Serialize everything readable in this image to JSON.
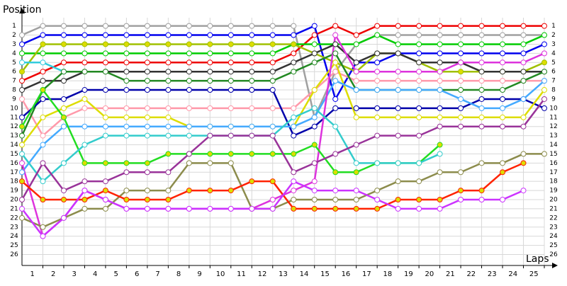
{
  "chart_data": {
    "type": "line",
    "ylabel": "Position",
    "xlabel": "Laps",
    "x": [
      0,
      1,
      2,
      3,
      4,
      5,
      6,
      7,
      8,
      9,
      10,
      11,
      12,
      13,
      14,
      15,
      16,
      17,
      18,
      19,
      20,
      21,
      22,
      23,
      24,
      25
    ],
    "xlim": [
      0,
      25
    ],
    "ylim": [
      27.2,
      0.1
    ],
    "xticks": [
      1,
      2,
      3,
      4,
      5,
      6,
      7,
      8,
      9,
      10,
      11,
      12,
      13,
      14,
      15,
      16,
      17,
      18,
      19,
      20,
      21,
      22,
      23,
      24,
      25
    ],
    "yticks": [
      1,
      2,
      3,
      4,
      5,
      6,
      7,
      8,
      9,
      10,
      11,
      12,
      13,
      14,
      15,
      16,
      17,
      18,
      19,
      20,
      21,
      22,
      23,
      24,
      25,
      26
    ],
    "grid": true,
    "series": [
      {
        "color": "#a0a0a0",
        "values": [
          2,
          1,
          1,
          1,
          1,
          1,
          1,
          1,
          1,
          1,
          1,
          1,
          1,
          1,
          11,
          6,
          3,
          2,
          2,
          2,
          2,
          2,
          2,
          2,
          2,
          2
        ]
      },
      {
        "color": "#ee0000",
        "values": [
          7,
          6,
          5,
          5,
          5,
          5,
          5,
          5,
          5,
          5,
          5,
          5,
          5,
          4,
          2,
          1,
          2,
          1,
          1,
          1,
          1,
          1,
          1,
          1,
          1,
          1
        ]
      },
      {
        "color": "#0000ee",
        "values": [
          3,
          2,
          2,
          2,
          2,
          2,
          2,
          2,
          2,
          2,
          2,
          2,
          2,
          2,
          1,
          9,
          5,
          5,
          4,
          4,
          4,
          4,
          4,
          4,
          4,
          3
        ]
      },
      {
        "color": "#00cc00",
        "values": [
          4,
          4,
          4,
          4,
          4,
          4,
          4,
          4,
          4,
          4,
          4,
          4,
          4,
          3,
          3,
          3,
          3,
          2,
          3,
          3,
          3,
          3,
          3,
          3,
          3,
          2
        ]
      },
      {
        "color": "#a0c000",
        "marker_color": "#dddd00",
        "values": [
          6,
          3,
          3,
          3,
          3,
          3,
          3,
          3,
          3,
          3,
          3,
          3,
          3,
          3,
          4,
          5,
          6,
          4,
          4,
          5,
          6,
          6,
          6,
          6,
          6,
          5
        ]
      },
      {
        "color": "#33ccdd",
        "values": [
          5,
          5,
          6,
          null,
          null,
          null,
          null,
          null,
          null,
          null,
          null,
          null,
          null,
          null,
          null,
          null,
          null,
          null,
          null,
          null,
          null,
          null,
          null,
          null,
          null,
          null
        ]
      },
      {
        "color": "#333333",
        "values": [
          8,
          7,
          7,
          6,
          6,
          6,
          6,
          6,
          6,
          6,
          6,
          6,
          6,
          5,
          4,
          3,
          5,
          4,
          4,
          5,
          5,
          5,
          6,
          6,
          6,
          6
        ]
      },
      {
        "color": "#ff99aa",
        "values": [
          9,
          13,
          11,
          10,
          10,
          10,
          10,
          10,
          10,
          10,
          10,
          10,
          10,
          10,
          8,
          6,
          7,
          7,
          7,
          7,
          7,
          7,
          7,
          7,
          7,
          7
        ]
      },
      {
        "color": "#228822",
        "values": [
          13,
          8,
          6,
          6,
          6,
          7,
          7,
          7,
          7,
          7,
          7,
          7,
          7,
          6,
          5,
          4,
          8,
          8,
          8,
          8,
          8,
          8,
          8,
          8,
          7,
          6
        ]
      },
      {
        "color": "#0000aa",
        "values": [
          11,
          9,
          9,
          8,
          8,
          8,
          8,
          8,
          8,
          8,
          8,
          8,
          8,
          13,
          12,
          10,
          10,
          10,
          10,
          10,
          10,
          10,
          9,
          9,
          9,
          10
        ]
      },
      {
        "color": "#dddd00",
        "values": [
          14,
          11,
          10,
          9,
          11,
          11,
          11,
          11,
          12,
          12,
          12,
          12,
          12,
          12,
          8,
          5,
          11,
          11,
          11,
          11,
          11,
          11,
          11,
          11,
          11,
          8
        ]
      },
      {
        "color": "#44aaff",
        "values": [
          17,
          14,
          12,
          12,
          12,
          12,
          12,
          12,
          12,
          12,
          12,
          12,
          12,
          12,
          11,
          7,
          8,
          8,
          8,
          8,
          8,
          9,
          10,
          10,
          9,
          7
        ]
      },
      {
        "color": "#dd33dd",
        "values": [
          16,
          24,
          22,
          19,
          20,
          21,
          21,
          21,
          21,
          21,
          21,
          21,
          20,
          19,
          18,
          2,
          6,
          6,
          6,
          6,
          6,
          5,
          5,
          5,
          5,
          4
        ]
      },
      {
        "color": "#22dd22",
        "marker_color": "#dddd00",
        "values": [
          12,
          8,
          11,
          16,
          16,
          16,
          16,
          15,
          15,
          15,
          15,
          15,
          15,
          15,
          14,
          17,
          17,
          16,
          16,
          16,
          14,
          null,
          null,
          null,
          null,
          null
        ]
      },
      {
        "color": "#33cccc",
        "values": [
          15,
          18,
          16,
          14,
          13,
          13,
          13,
          13,
          13,
          13,
          13,
          13,
          13,
          11,
          10,
          12,
          16,
          16,
          16,
          16,
          15,
          null,
          null,
          null,
          null,
          null
        ]
      },
      {
        "color": "#993399",
        "values": [
          20,
          16,
          19,
          18,
          18,
          17,
          17,
          17,
          15,
          13,
          13,
          13,
          13,
          17,
          16,
          15,
          14,
          13,
          13,
          13,
          12,
          12,
          12,
          12,
          12,
          9
        ]
      },
      {
        "color": "#8c8c4c",
        "values": [
          22,
          23,
          22,
          21,
          21,
          19,
          19,
          19,
          16,
          16,
          16,
          21,
          21,
          20,
          20,
          20,
          20,
          19,
          18,
          18,
          17,
          17,
          16,
          16,
          15,
          15
        ]
      },
      {
        "color": "#ff2200",
        "marker_color": "#dddd00",
        "values": [
          18,
          20,
          20,
          20,
          19,
          20,
          20,
          20,
          19,
          19,
          19,
          18,
          18,
          21,
          21,
          21,
          21,
          21,
          20,
          20,
          20,
          19,
          19,
          17,
          16,
          null
        ]
      },
      {
        "color": "#cc33ff",
        "values": [
          21,
          24,
          22,
          19,
          20,
          21,
          21,
          21,
          21,
          21,
          21,
          21,
          21,
          18,
          19,
          19,
          19,
          20,
          21,
          21,
          21,
          20,
          20,
          20,
          19,
          null
        ]
      }
    ]
  }
}
